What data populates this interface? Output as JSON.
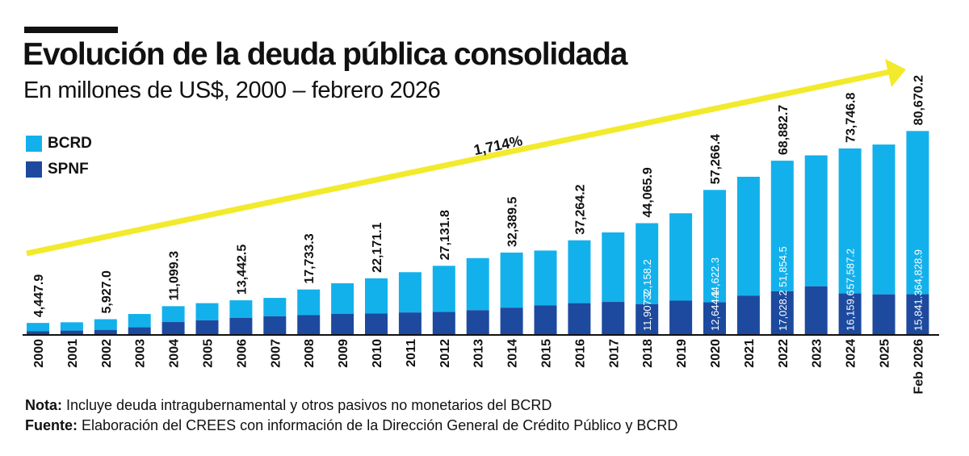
{
  "title": "Evolución de la deuda pública consolidada",
  "subtitle": "En millones de US$, 2000 – febrero 2026",
  "legend": [
    {
      "label": "BCRD",
      "color": "#13b1ec"
    },
    {
      "label": "SPNF",
      "color": "#1d4a9e"
    }
  ],
  "growth_label": "1,714%",
  "colors": {
    "bcrd": "#13b1ec",
    "spnf": "#1d4a9e",
    "arrow": "#f2ea2c",
    "text": "#111111"
  },
  "notes": {
    "nota_label": "Nota:",
    "nota_text": " Incluye deuda intragubernamental y otros pasivos no monetarios del BCRD",
    "fuente_label": "Fuente:",
    "fuente_text": " Elaboración del CREES con información de la Dirección General de Crédito Público y BCRD"
  },
  "chart_data": {
    "type": "bar",
    "stacked": true,
    "title": "Evolución de la deuda pública consolidada",
    "subtitle": "En millones de US$, 2000 – febrero 2026",
    "categories": [
      "2000",
      "2001",
      "2002",
      "2003",
      "2004",
      "2005",
      "2006",
      "2007",
      "2008",
      "2009",
      "2010",
      "2011",
      "2012",
      "2013",
      "2014",
      "2015",
      "2016",
      "2017",
      "2018",
      "2019",
      "2020",
      "2021",
      "2022",
      "2023",
      "2024",
      "2025",
      "Feb 2026"
    ],
    "series": [
      {
        "name": "SPNF",
        "values": [
          1200,
          1400,
          1700,
          2700,
          4800,
          5500,
          6500,
          7100,
          7600,
          8100,
          8200,
          8600,
          8800,
          9500,
          10500,
          11400,
          12300,
          12800,
          11907.7,
          13300,
          12644.1,
          15300,
          17028.2,
          19000,
          16159.6,
          15800,
          15841.3
        ]
      },
      {
        "name": "BCRD",
        "values": [
          3247.9,
          3300,
          4227.0,
          5300,
          6299.3,
          6800,
          6942.5,
          7300,
          10133.3,
          12100,
          13971.1,
          16000,
          18331.8,
          20700,
          21889.5,
          21800,
          24964.2,
          27600,
          32158.2,
          34700,
          44622.3,
          47200,
          51854.5,
          52000,
          57587.2,
          59500,
          64828.9
        ]
      }
    ],
    "total_labels": [
      {
        "category": "2000",
        "label": "4,447.9"
      },
      {
        "category": "2002",
        "label": "5,927.0"
      },
      {
        "category": "2004",
        "label": "11,099.3"
      },
      {
        "category": "2006",
        "label": "13,442.5"
      },
      {
        "category": "2008",
        "label": "17,733.3"
      },
      {
        "category": "2010",
        "label": "22,171.1"
      },
      {
        "category": "2012",
        "label": "27,131.8"
      },
      {
        "category": "2014",
        "label": "32,389.5"
      },
      {
        "category": "2016",
        "label": "37,264.2"
      },
      {
        "category": "2018",
        "label": "44,065.9"
      },
      {
        "category": "2020",
        "label": "57,266.4"
      },
      {
        "category": "2022",
        "label": "68,882.7"
      },
      {
        "category": "2024",
        "label": "73,746.8"
      },
      {
        "category": "Feb 2026",
        "label": "80,670.2"
      }
    ],
    "segment_labels": [
      {
        "category": "2018",
        "spnf": "11,907.7",
        "bcrd": "32,158.2"
      },
      {
        "category": "2020",
        "spnf": "12,644.1",
        "bcrd": "44,622.3"
      },
      {
        "category": "2022",
        "spnf": "17,028.2",
        "bcrd": "51,854.5"
      },
      {
        "category": "2024",
        "spnf": "16,159.6",
        "bcrd": "57,587.2"
      },
      {
        "category": "Feb 2026",
        "spnf": "15,841.3",
        "bcrd": "64,828.9"
      }
    ],
    "annotation": "1,714%",
    "ylim": [
      0,
      100000
    ],
    "xlabel": "",
    "ylabel": "",
    "legend_position": "top-left",
    "grid": false
  }
}
